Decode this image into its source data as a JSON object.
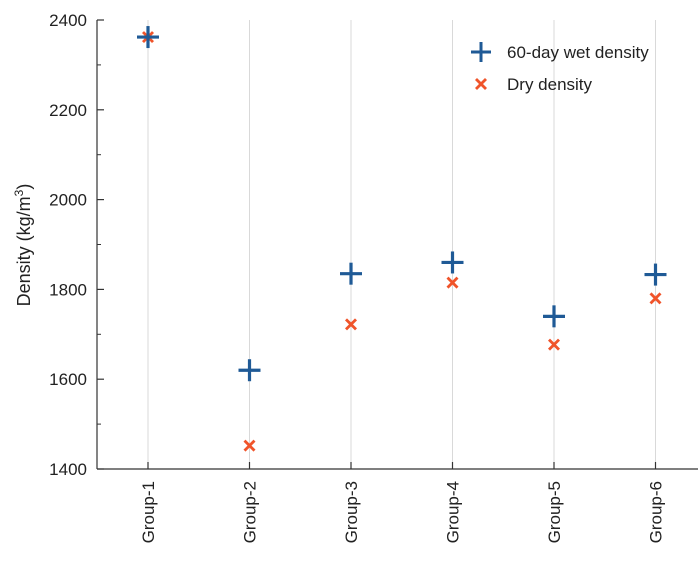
{
  "chart_data": {
    "type": "scatter",
    "title": "",
    "xlabel": "",
    "ylabel": "Density (kg/m³)",
    "ylabel_parts": {
      "main": "Density (kg/m",
      "sup": "3",
      "close": ")"
    },
    "categories": [
      "Group-1",
      "Group-2",
      "Group-3",
      "Group-4",
      "Group-5",
      "Group-6"
    ],
    "ylim": [
      1400,
      2400
    ],
    "yticks": [
      1400,
      1600,
      1800,
      2000,
      2200,
      2400
    ],
    "ytick_labels": [
      "1400",
      "1600",
      "1800",
      "2000",
      "2200",
      "2400"
    ],
    "grid": "vertical",
    "legend_position": "top-right",
    "series": [
      {
        "name": "60-day wet density",
        "marker": "plus",
        "color": "#1f5a96",
        "values": [
          2362,
          1620,
          1835,
          1860,
          1740,
          1833
        ]
      },
      {
        "name": "Dry density",
        "marker": "x",
        "color": "#f0542a",
        "values": [
          2362,
          1452,
          1722,
          1815,
          1677,
          1780
        ]
      }
    ]
  }
}
